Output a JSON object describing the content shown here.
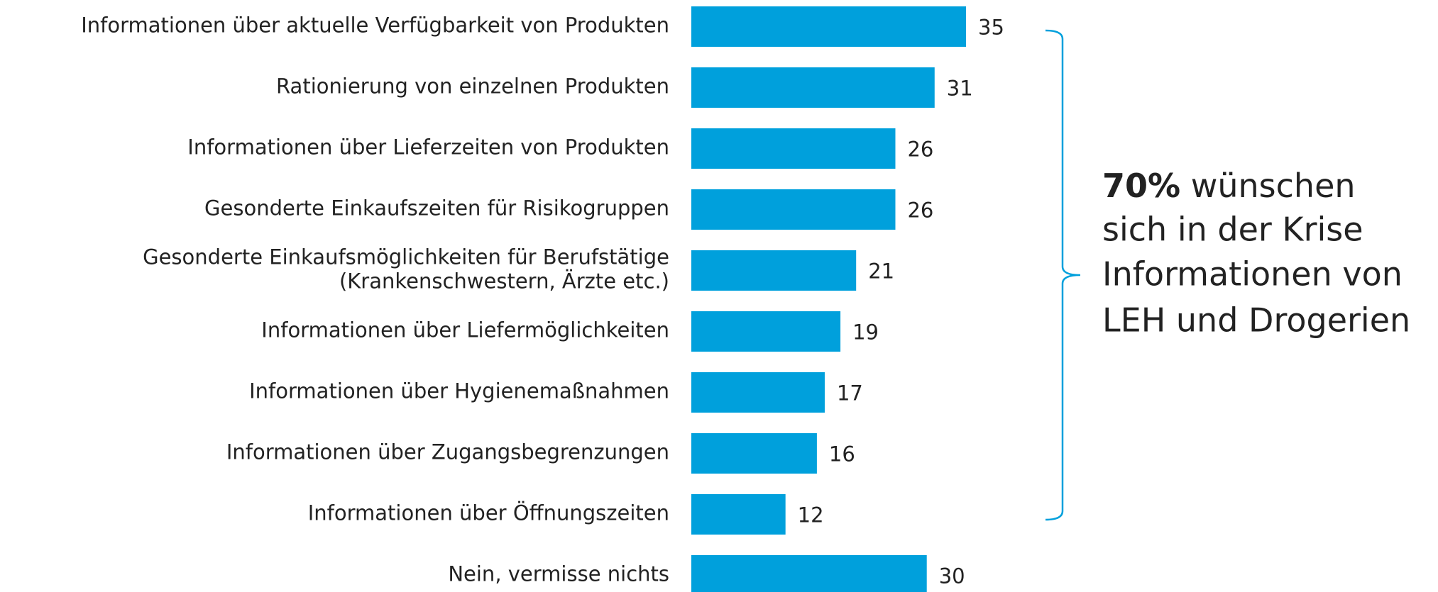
{
  "chart_data": {
    "type": "barh",
    "categories": [
      "Informationen über aktuelle Verfügbarkeit von Produkten",
      "Rationierung von einzelnen Produkten",
      "Informationen über Lieferzeiten von Produkten",
      "Gesonderte Einkaufszeiten für Risikogruppen",
      [
        "Gesonderte Einkaufsmöglichkeiten für Berufstätige",
        "(Krankenschwestern, Ärzte etc.)"
      ],
      "Informationen über Liefermöglichkeiten",
      "Informationen über Hygienemaßnahmen",
      "Informationen über Zugangsbegrenzungen",
      "Informationen über Öffnungszeiten",
      "Nein, vermisse nichts"
    ],
    "values": [
      35,
      31,
      26,
      26,
      21,
      19,
      17,
      16,
      12,
      30
    ],
    "color": "#00a0dc",
    "annotation": {
      "bold": "70%",
      "lines": [
        "wünschen",
        "sich in der Krise",
        "Informationen von",
        "LEH und Drogerien"
      ]
    }
  }
}
